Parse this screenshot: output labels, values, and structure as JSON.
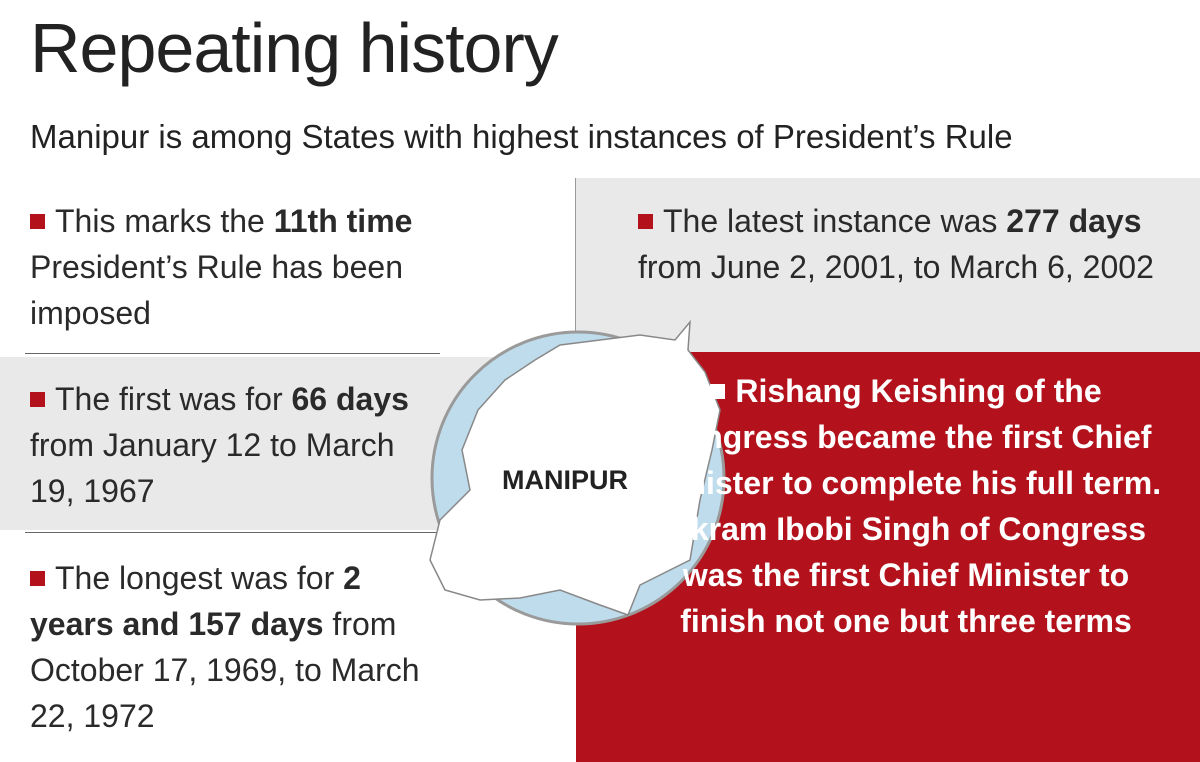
{
  "header": {
    "title": "Repeating history",
    "subtitle": "Manipur is among States with highest instances of President’s Rule"
  },
  "panels": [
    {
      "before": "This marks the ",
      "bold": "11th time",
      "after": " President’s Rule has been imposed"
    },
    {
      "before": "The latest instance was ",
      "bold": "277 days",
      "after": " from June 2, 2001, to March 6, 2002"
    },
    {
      "before": "The first was for ",
      "bold": "66 days",
      "after": " from January 12 to March 19, 1967"
    },
    {
      "before": "The longest was for ",
      "bold": "2 years and 157 days",
      "after": " from October 17, 1969, to March 22, 1972"
    },
    {
      "text": "Rishang Keishing of the Congress became the first Chief Minister to complete his full term. Okram Ibobi Singh of Congress was the first Chief Minister to finish not one but three terms"
    }
  ],
  "map": {
    "label": "MANIPUR"
  }
}
